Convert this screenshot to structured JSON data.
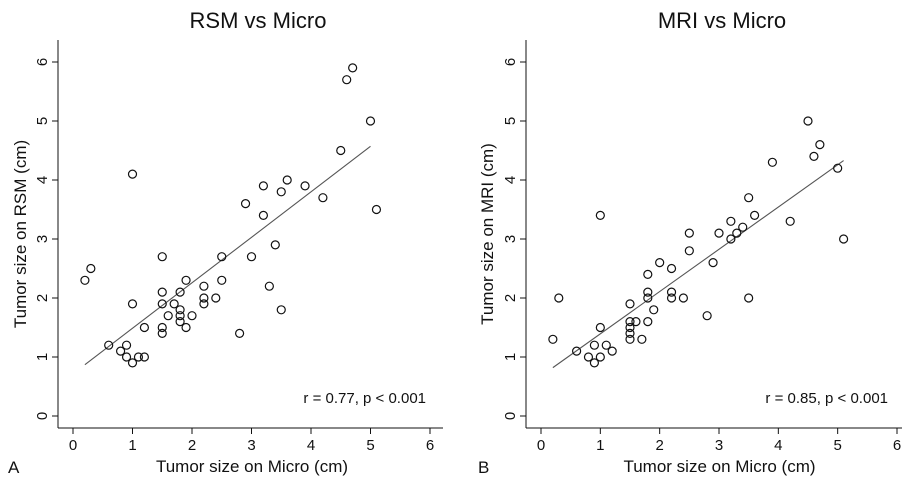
{
  "chart_data": [
    {
      "type": "scatter",
      "panel_label": "A",
      "title": "RSM vs Micro",
      "xlabel": "Tumor size on Micro (cm)",
      "ylabel": "Tumor size on RSM (cm)",
      "xlim": [
        0,
        6
      ],
      "ylim": [
        0,
        6
      ],
      "xticks": [
        "0",
        "1",
        "2",
        "3",
        "4",
        "5",
        "6"
      ],
      "yticks": [
        "0",
        "1",
        "2",
        "3",
        "4",
        "5",
        "6"
      ],
      "annotation": "r = 0.77, p < 0.001",
      "fit_line": {
        "x": [
          0.2,
          5.0
        ],
        "y": [
          0.87,
          4.57
        ]
      },
      "points": [
        [
          0.2,
          2.3
        ],
        [
          0.3,
          2.5
        ],
        [
          0.6,
          1.2
        ],
        [
          0.8,
          1.1
        ],
        [
          0.9,
          1.0
        ],
        [
          0.9,
          1.2
        ],
        [
          1.0,
          0.9
        ],
        [
          1.0,
          1.9
        ],
        [
          1.0,
          4.1
        ],
        [
          1.1,
          1.0
        ],
        [
          1.2,
          1.0
        ],
        [
          1.2,
          1.5
        ],
        [
          1.5,
          1.4
        ],
        [
          1.5,
          1.5
        ],
        [
          1.5,
          1.9
        ],
        [
          1.5,
          2.1
        ],
        [
          1.5,
          2.7
        ],
        [
          1.6,
          1.7
        ],
        [
          1.7,
          1.9
        ],
        [
          1.8,
          1.6
        ],
        [
          1.8,
          1.7
        ],
        [
          1.8,
          1.8
        ],
        [
          1.8,
          2.1
        ],
        [
          1.9,
          1.5
        ],
        [
          1.9,
          2.3
        ],
        [
          2.0,
          1.7
        ],
        [
          2.2,
          1.9
        ],
        [
          2.2,
          2.0
        ],
        [
          2.2,
          2.2
        ],
        [
          2.4,
          2.0
        ],
        [
          2.5,
          2.3
        ],
        [
          2.5,
          2.7
        ],
        [
          2.8,
          1.4
        ],
        [
          2.9,
          3.6
        ],
        [
          3.0,
          2.7
        ],
        [
          3.2,
          3.4
        ],
        [
          3.2,
          3.9
        ],
        [
          3.3,
          2.2
        ],
        [
          3.4,
          2.9
        ],
        [
          3.5,
          1.8
        ],
        [
          3.5,
          3.8
        ],
        [
          3.6,
          4.0
        ],
        [
          3.9,
          3.9
        ],
        [
          4.2,
          3.7
        ],
        [
          4.5,
          4.5
        ],
        [
          4.6,
          5.7
        ],
        [
          4.7,
          5.9
        ],
        [
          5.0,
          5.0
        ],
        [
          5.1,
          3.5
        ]
      ]
    },
    {
      "type": "scatter",
      "panel_label": "B",
      "title": "MRI vs Micro",
      "xlabel": "Tumor size on Micro (cm)",
      "ylabel": "Tumor size on MRI (cm)",
      "xlim": [
        0,
        6
      ],
      "ylim": [
        0,
        6
      ],
      "xticks": [
        "0",
        "1",
        "2",
        "3",
        "4",
        "5",
        "6"
      ],
      "yticks": [
        "0",
        "1",
        "2",
        "3",
        "4",
        "5",
        "6"
      ],
      "annotation": "r = 0.85, p < 0.001",
      "fit_line": {
        "x": [
          0.2,
          5.1
        ],
        "y": [
          0.82,
          4.33
        ]
      },
      "points": [
        [
          0.2,
          1.3
        ],
        [
          0.3,
          2.0
        ],
        [
          0.6,
          1.1
        ],
        [
          0.8,
          1.0
        ],
        [
          0.9,
          0.9
        ],
        [
          0.9,
          1.2
        ],
        [
          1.0,
          1.0
        ],
        [
          1.0,
          1.5
        ],
        [
          1.0,
          3.4
        ],
        [
          1.1,
          1.2
        ],
        [
          1.2,
          1.1
        ],
        [
          1.5,
          1.3
        ],
        [
          1.5,
          1.4
        ],
        [
          1.5,
          1.5
        ],
        [
          1.5,
          1.6
        ],
        [
          1.5,
          1.9
        ],
        [
          1.6,
          1.6
        ],
        [
          1.7,
          1.3
        ],
        [
          1.8,
          1.6
        ],
        [
          1.8,
          2.0
        ],
        [
          1.8,
          2.1
        ],
        [
          1.8,
          2.4
        ],
        [
          1.9,
          1.8
        ],
        [
          2.0,
          2.6
        ],
        [
          2.2,
          2.0
        ],
        [
          2.2,
          2.1
        ],
        [
          2.2,
          2.5
        ],
        [
          2.4,
          2.0
        ],
        [
          2.5,
          2.8
        ],
        [
          2.5,
          3.1
        ],
        [
          2.8,
          1.7
        ],
        [
          2.9,
          2.6
        ],
        [
          3.0,
          3.1
        ],
        [
          3.2,
          3.0
        ],
        [
          3.2,
          3.3
        ],
        [
          3.3,
          3.1
        ],
        [
          3.4,
          3.2
        ],
        [
          3.5,
          2.0
        ],
        [
          3.5,
          3.7
        ],
        [
          3.6,
          3.4
        ],
        [
          3.9,
          4.3
        ],
        [
          4.2,
          3.3
        ],
        [
          4.5,
          5.0
        ],
        [
          4.6,
          4.4
        ],
        [
          4.7,
          4.6
        ],
        [
          5.0,
          4.2
        ],
        [
          5.1,
          3.0
        ]
      ]
    }
  ]
}
